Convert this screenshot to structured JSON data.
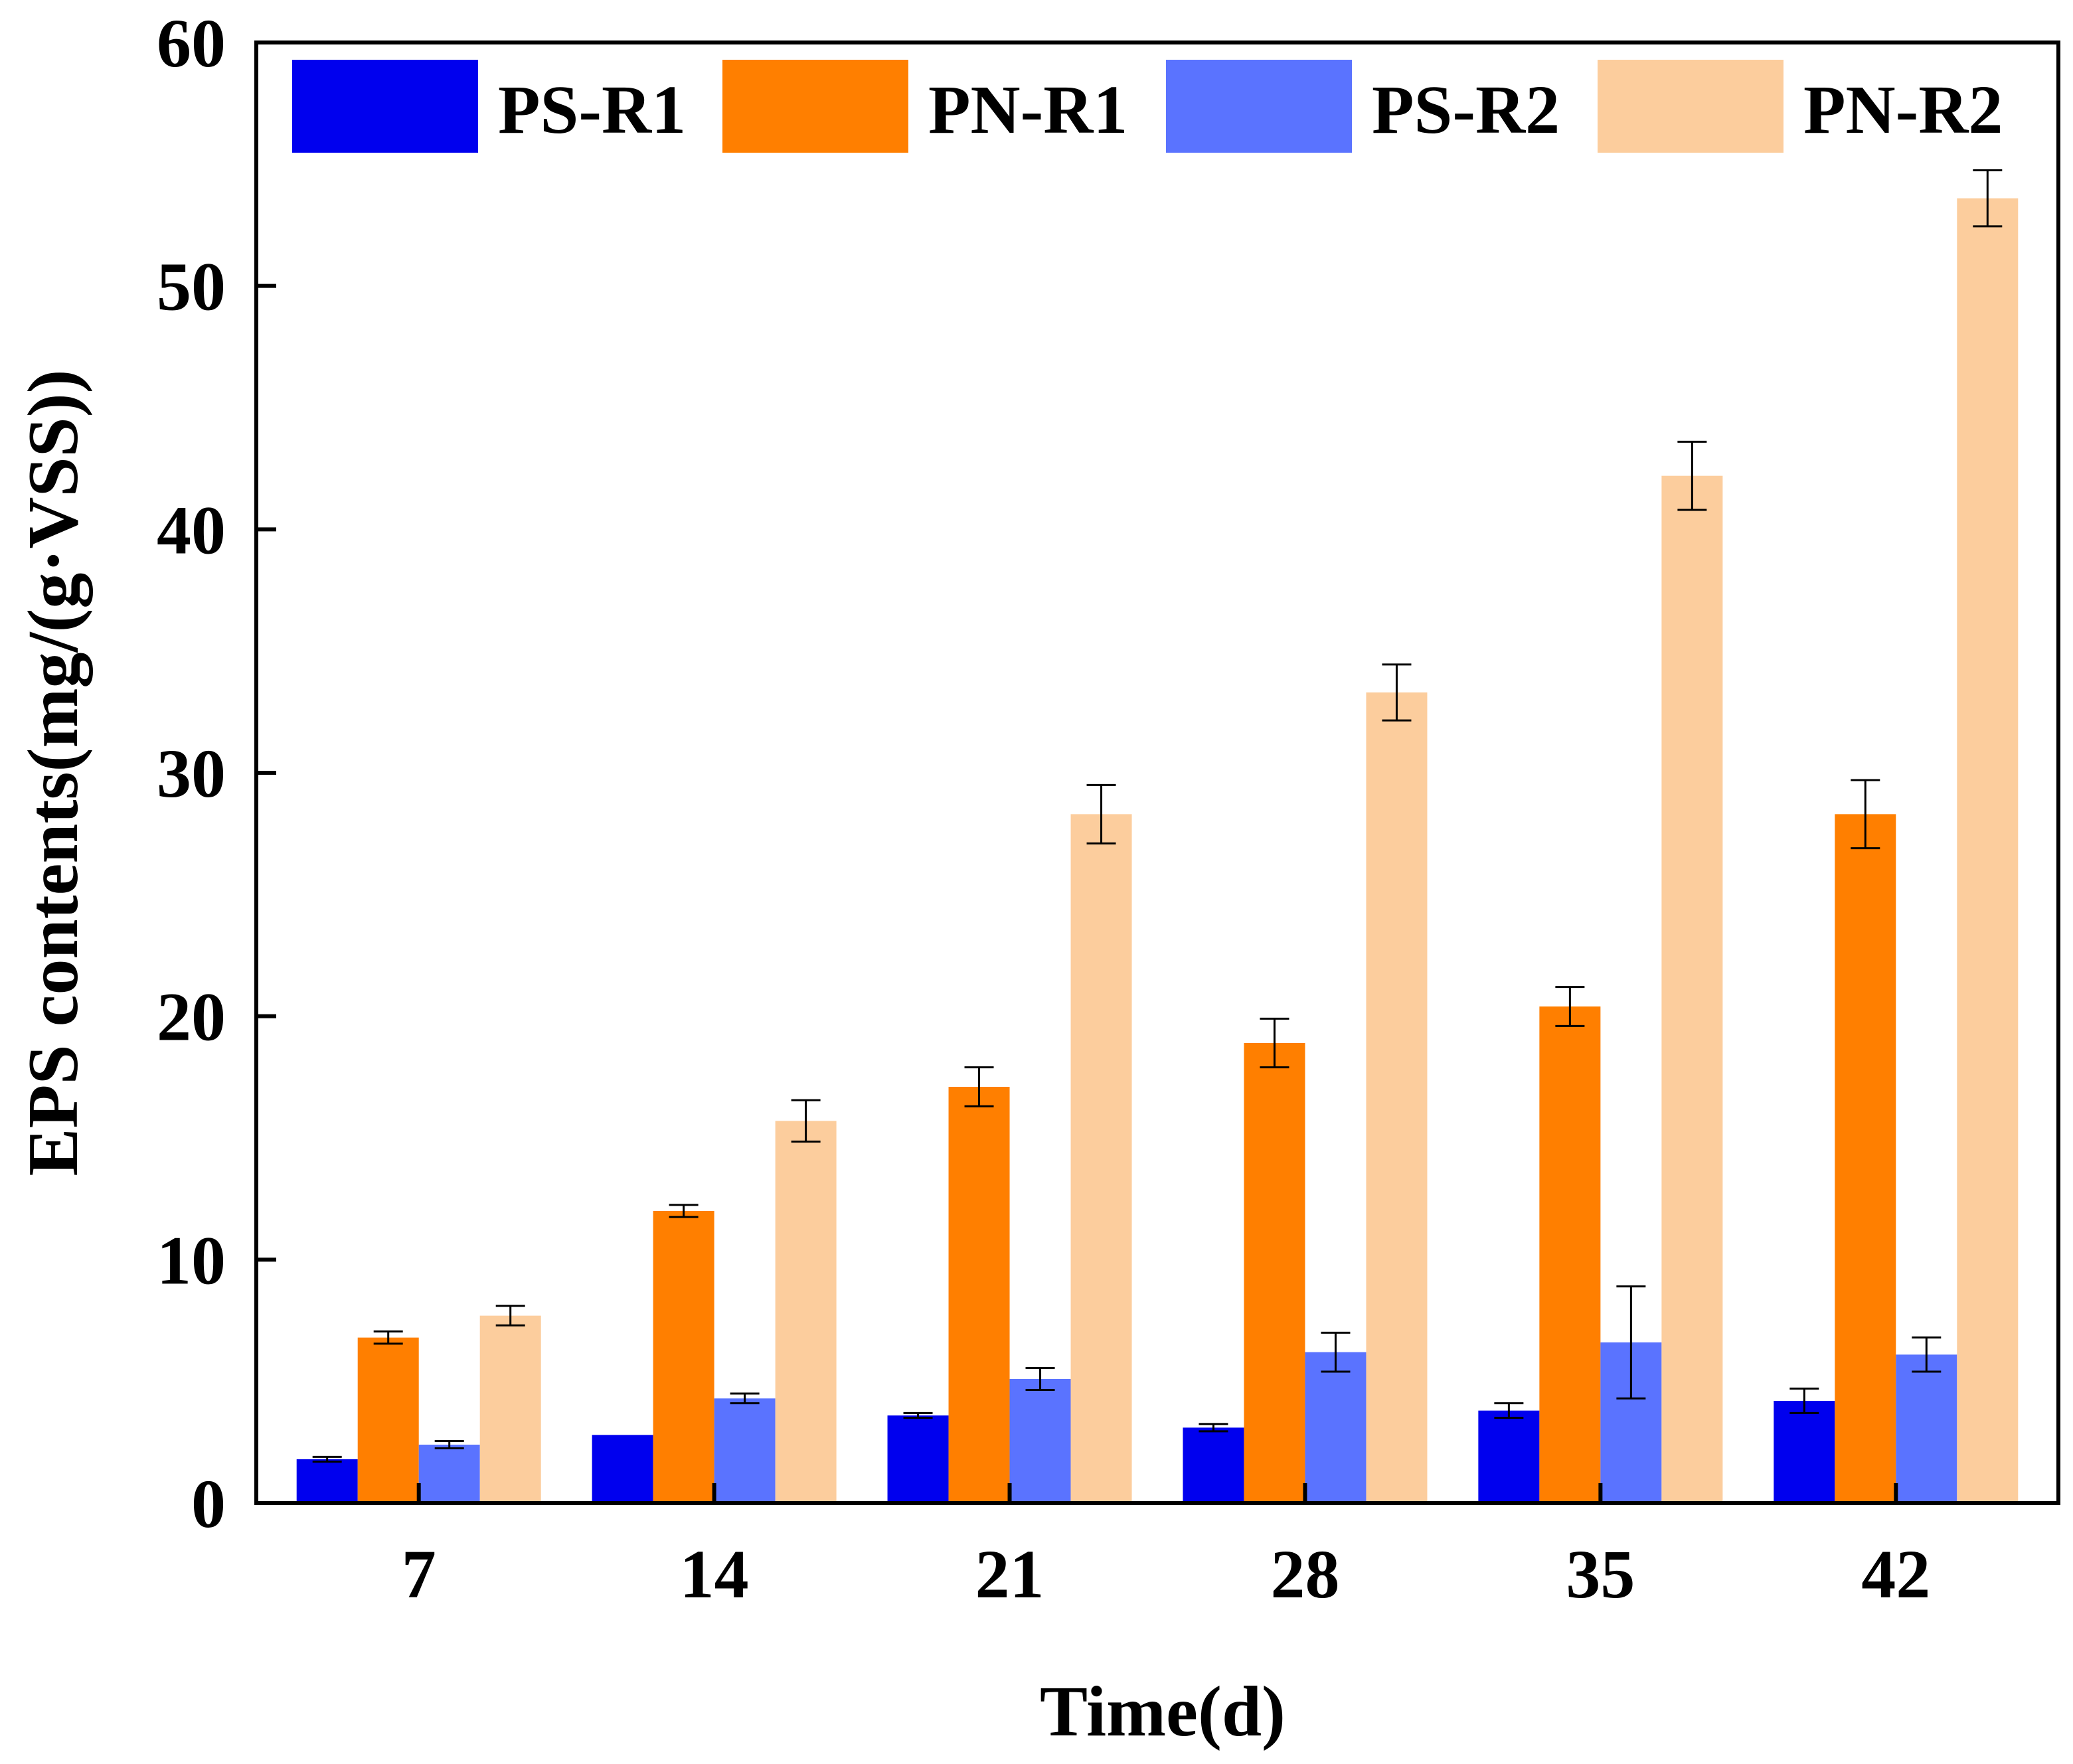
{
  "chart_data": {
    "type": "bar",
    "title": "",
    "xlabel": "Time(d)",
    "ylabel": "EPS contents(mg/(g·VSS))",
    "categories": [
      "7",
      "14",
      "21",
      "28",
      "35",
      "42"
    ],
    "ylim": [
      0,
      60
    ],
    "yticks": [
      "0",
      "10",
      "20",
      "30",
      "40",
      "50",
      "60"
    ],
    "grid": false,
    "legend_position": "top",
    "series": [
      {
        "name": "PS-R1",
        "color": "#0000ee",
        "values": [
          1.8,
          2.8,
          3.6,
          3.1,
          3.8,
          4.2
        ],
        "errors": [
          0.1,
          0.0,
          0.1,
          0.15,
          0.3,
          0.5
        ]
      },
      {
        "name": "PN-R1",
        "color": "#ff7f00",
        "values": [
          6.8,
          12.0,
          17.1,
          18.9,
          20.4,
          28.3
        ],
        "errors": [
          0.25,
          0.25,
          0.8,
          1.0,
          0.8,
          1.4
        ]
      },
      {
        "name": "PS-R2",
        "color": "#5a73ff",
        "values": [
          2.4,
          4.3,
          5.1,
          6.2,
          6.6,
          6.1
        ],
        "errors": [
          0.15,
          0.2,
          0.45,
          0.8,
          2.3,
          0.7
        ]
      },
      {
        "name": "PN-R2",
        "color": "#fccd9d",
        "values": [
          7.7,
          15.7,
          28.3,
          33.3,
          42.2,
          53.6
        ],
        "errors": [
          0.4,
          0.85,
          1.2,
          1.15,
          1.4,
          1.15
        ]
      }
    ]
  }
}
